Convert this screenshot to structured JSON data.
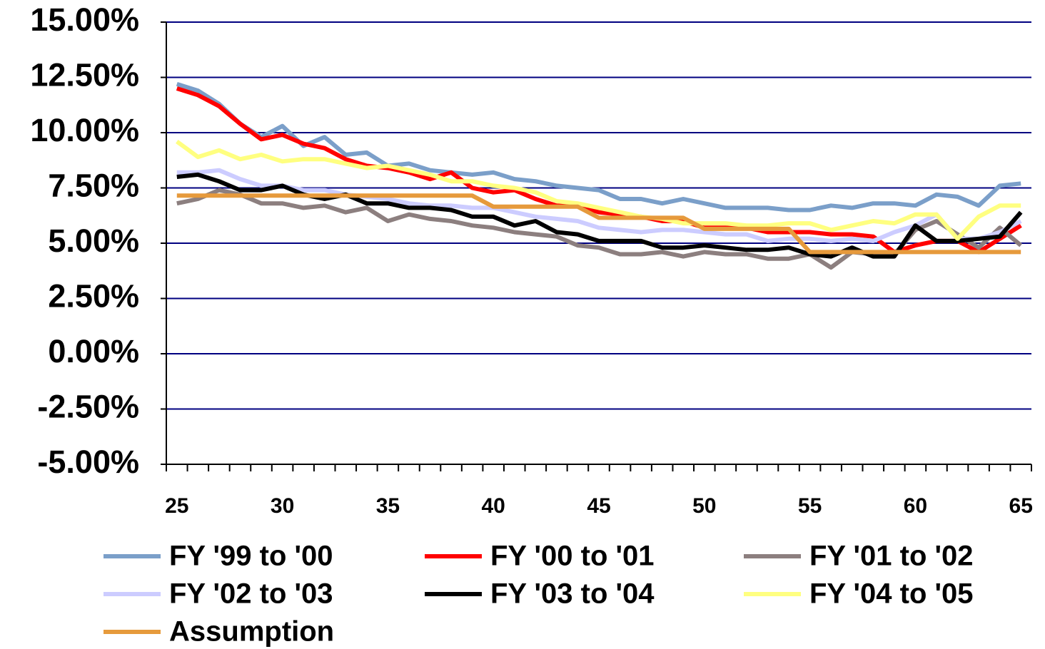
{
  "chart_data": {
    "type": "line",
    "categories": [
      "25",
      null,
      null,
      null,
      null,
      "30",
      null,
      null,
      null,
      null,
      "35",
      null,
      null,
      null,
      null,
      "40",
      null,
      null,
      null,
      null,
      "45",
      null,
      null,
      null,
      null,
      "50",
      null,
      null,
      null,
      null,
      "55",
      null,
      null,
      null,
      null,
      "60",
      null,
      null,
      null,
      null,
      "65"
    ],
    "series": [
      {
        "name": "FY '99 to '00",
        "color": "#7b9fc9",
        "values": [
          12.2,
          11.9,
          11.3,
          10.4,
          9.8,
          10.3,
          9.4,
          9.8,
          9.0,
          9.1,
          8.5,
          8.6,
          8.3,
          8.2,
          8.1,
          8.2,
          7.9,
          7.8,
          7.6,
          7.5,
          7.4,
          7.0,
          7.0,
          6.8,
          7.0,
          6.8,
          6.6,
          6.6,
          6.6,
          6.5,
          6.5,
          6.7,
          6.6,
          6.8,
          6.8,
          6.7,
          7.2,
          7.1,
          6.7,
          7.6,
          7.7
        ]
      },
      {
        "name": "FY '00 to '01",
        "color": "#ff0000",
        "values": [
          12.0,
          11.7,
          11.2,
          10.4,
          9.7,
          9.9,
          9.5,
          9.3,
          8.8,
          8.5,
          8.4,
          8.2,
          7.9,
          8.2,
          7.5,
          7.3,
          7.4,
          7.0,
          6.7,
          6.7,
          6.4,
          6.3,
          6.2,
          6.0,
          6.0,
          5.7,
          5.7,
          5.7,
          5.5,
          5.5,
          5.5,
          5.4,
          5.4,
          5.3,
          4.6,
          4.9,
          5.1,
          5.1,
          4.6,
          5.2,
          5.8
        ]
      },
      {
        "name": "FY '01 to '02",
        "color": "#8c7f7f",
        "values": [
          6.8,
          7.0,
          7.4,
          7.2,
          6.8,
          6.8,
          6.6,
          6.7,
          6.4,
          6.6,
          6.0,
          6.3,
          6.1,
          6.0,
          5.8,
          5.7,
          5.5,
          5.4,
          5.3,
          4.9,
          4.8,
          4.5,
          4.5,
          4.6,
          4.4,
          4.6,
          4.5,
          4.5,
          4.3,
          4.3,
          4.5,
          3.9,
          4.6,
          4.5,
          4.5,
          5.6,
          6.0,
          5.4,
          4.8,
          5.7,
          4.9
        ]
      },
      {
        "name": "FY '02 to '03",
        "color": "#ccccff",
        "values": [
          8.2,
          8.2,
          8.3,
          7.9,
          7.6,
          7.6,
          7.4,
          7.4,
          7.2,
          7.1,
          7.0,
          6.8,
          6.7,
          6.7,
          6.6,
          6.6,
          6.4,
          6.2,
          6.1,
          6.0,
          5.7,
          5.6,
          5.5,
          5.6,
          5.6,
          5.5,
          5.4,
          5.4,
          5.1,
          5.2,
          5.2,
          5.1,
          5.2,
          5.1,
          5.5,
          5.8,
          6.3,
          5.2,
          5.2,
          5.5,
          6.0
        ]
      },
      {
        "name": "FY '03 to '04",
        "color": "#000000",
        "values": [
          8.0,
          8.1,
          7.8,
          7.4,
          7.4,
          7.6,
          7.2,
          7.0,
          7.2,
          6.8,
          6.8,
          6.6,
          6.6,
          6.5,
          6.2,
          6.2,
          5.8,
          6.0,
          5.5,
          5.4,
          5.1,
          5.1,
          5.1,
          4.8,
          4.8,
          4.9,
          4.8,
          4.7,
          4.7,
          4.8,
          4.5,
          4.4,
          4.8,
          4.4,
          4.4,
          5.8,
          5.1,
          5.1,
          5.2,
          5.3,
          6.4
        ]
      },
      {
        "name": "FY '04 to '05",
        "color": "#ffff80",
        "values": [
          9.6,
          8.9,
          9.2,
          8.8,
          9.0,
          8.7,
          8.8,
          8.8,
          8.6,
          8.4,
          8.5,
          8.3,
          8.1,
          7.8,
          7.8,
          7.6,
          7.5,
          7.3,
          6.9,
          6.8,
          6.6,
          6.4,
          6.2,
          6.1,
          5.9,
          5.9,
          5.9,
          5.8,
          5.8,
          5.9,
          5.9,
          5.6,
          5.8,
          6.0,
          5.9,
          6.3,
          6.3,
          5.2,
          6.2,
          6.7,
          6.7
        ]
      },
      {
        "name": "Assumption",
        "color": "#e69a3c",
        "values": [
          7.15,
          7.15,
          7.15,
          7.15,
          7.15,
          7.15,
          7.15,
          7.15,
          7.15,
          7.15,
          7.15,
          7.15,
          7.15,
          7.15,
          7.15,
          6.65,
          6.65,
          6.65,
          6.65,
          6.65,
          6.15,
          6.15,
          6.15,
          6.15,
          6.15,
          5.65,
          5.65,
          5.65,
          5.65,
          5.65,
          4.6,
          4.6,
          4.6,
          4.6,
          4.6,
          4.6,
          4.6,
          4.6,
          4.6,
          4.6,
          4.6
        ]
      }
    ],
    "ylim": [
      -5,
      15
    ],
    "yticks": [
      {
        "value": -5,
        "label": "-5.00%"
      },
      {
        "value": -2.5,
        "label": "-2.50%"
      },
      {
        "value": 0,
        "label": "0.00%"
      },
      {
        "value": 2.5,
        "label": "2.50%"
      },
      {
        "value": 5,
        "label": "5.00%"
      },
      {
        "value": 7.5,
        "label": "7.50%"
      },
      {
        "value": 10,
        "label": "10.00%"
      },
      {
        "value": 12.5,
        "label": "12.50%"
      },
      {
        "value": 15,
        "label": "15.00%"
      }
    ],
    "grid": true,
    "legend": "bottom"
  }
}
